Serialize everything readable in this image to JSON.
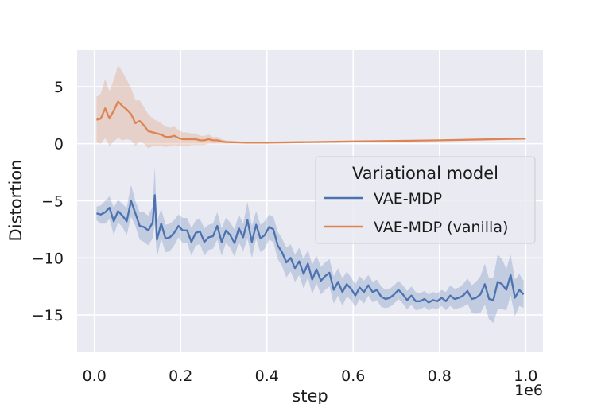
{
  "chart_data": {
    "type": "line",
    "title": "",
    "xlabel": "step",
    "ylabel": "Distortion",
    "x_offset_label": "1e6",
    "xlim": [
      -0.04,
      1.04
    ],
    "ylim": [
      -18.2,
      8.2
    ],
    "x_ticks": [
      0.0,
      0.2,
      0.4,
      0.6,
      0.8,
      1.0
    ],
    "x_tick_labels": [
      "0.0",
      "0.2",
      "0.4",
      "0.6",
      "0.8",
      "1.0"
    ],
    "y_ticks": [
      5,
      0,
      -5,
      -10,
      -15
    ],
    "y_tick_labels": [
      "5",
      "0",
      "−5",
      "−10",
      "−15"
    ],
    "grid": true,
    "background": "#eaeaf2",
    "legend": {
      "title": "Variational model",
      "placement": "center-right"
    },
    "series": [
      {
        "name": "VAE-MDP",
        "color": "#4c72b0",
        "x": [
          0.005,
          0.015,
          0.025,
          0.035,
          0.045,
          0.055,
          0.065,
          0.075,
          0.085,
          0.095,
          0.105,
          0.115,
          0.125,
          0.135,
          0.14,
          0.145,
          0.155,
          0.165,
          0.175,
          0.185,
          0.195,
          0.205,
          0.215,
          0.225,
          0.235,
          0.245,
          0.255,
          0.265,
          0.275,
          0.285,
          0.295,
          0.305,
          0.315,
          0.325,
          0.335,
          0.345,
          0.355,
          0.365,
          0.375,
          0.385,
          0.395,
          0.405,
          0.415,
          0.425,
          0.435,
          0.445,
          0.455,
          0.465,
          0.475,
          0.485,
          0.495,
          0.505,
          0.515,
          0.525,
          0.535,
          0.545,
          0.555,
          0.565,
          0.575,
          0.585,
          0.595,
          0.605,
          0.615,
          0.625,
          0.635,
          0.645,
          0.655,
          0.665,
          0.675,
          0.685,
          0.695,
          0.705,
          0.715,
          0.725,
          0.735,
          0.745,
          0.755,
          0.765,
          0.775,
          0.785,
          0.795,
          0.805,
          0.815,
          0.825,
          0.835,
          0.845,
          0.855,
          0.865,
          0.875,
          0.885,
          0.895,
          0.905,
          0.915,
          0.925,
          0.935,
          0.945,
          0.955,
          0.965,
          0.975,
          0.985,
          0.995
        ],
        "y": [
          -6.1,
          -6.2,
          -6.0,
          -5.6,
          -6.8,
          -5.9,
          -6.3,
          -6.8,
          -5.0,
          -6.1,
          -7.2,
          -7.3,
          -7.6,
          -6.9,
          -4.5,
          -8.4,
          -7.0,
          -8.3,
          -8.2,
          -7.8,
          -7.2,
          -7.6,
          -7.6,
          -8.6,
          -7.8,
          -7.7,
          -8.6,
          -8.2,
          -8.1,
          -7.2,
          -8.6,
          -7.6,
          -8.0,
          -8.7,
          -7.4,
          -8.2,
          -6.7,
          -8.6,
          -7.1,
          -8.3,
          -8.0,
          -7.3,
          -7.5,
          -8.9,
          -9.5,
          -10.4,
          -10.0,
          -10.9,
          -10.3,
          -11.4,
          -10.5,
          -11.9,
          -11.0,
          -12.0,
          -11.6,
          -11.3,
          -12.8,
          -12.1,
          -13.0,
          -12.3,
          -12.7,
          -13.3,
          -12.6,
          -13.0,
          -12.4,
          -13.0,
          -12.8,
          -13.4,
          -13.6,
          -13.5,
          -13.2,
          -12.8,
          -13.2,
          -13.7,
          -13.3,
          -13.8,
          -13.8,
          -13.6,
          -13.9,
          -13.7,
          -13.8,
          -13.5,
          -13.8,
          -13.3,
          -13.6,
          -13.5,
          -13.3,
          -12.9,
          -13.6,
          -13.5,
          -13.2,
          -12.3,
          -13.6,
          -13.7,
          -12.1,
          -12.3,
          -12.8,
          -11.5,
          -13.5,
          -12.8,
          -13.2
        ],
        "band_width": [
          0.6,
          0.8,
          1.0,
          1.0,
          1.2,
          1.0,
          1.0,
          1.2,
          1.4,
          1.1,
          1.2,
          1.3,
          1.3,
          1.4,
          2.5,
          1.6,
          1.3,
          1.2,
          1.2,
          1.1,
          1.0,
          1.1,
          1.1,
          1.2,
          1.1,
          1.1,
          1.2,
          1.1,
          1.1,
          1.2,
          1.2,
          1.1,
          1.1,
          1.2,
          1.2,
          1.2,
          1.6,
          1.4,
          1.2,
          1.2,
          1.2,
          1.1,
          1.1,
          1.2,
          1.2,
          1.3,
          1.2,
          1.2,
          1.2,
          1.3,
          1.2,
          1.3,
          1.2,
          1.2,
          1.2,
          1.2,
          1.2,
          1.2,
          1.2,
          1.1,
          1.0,
          1.0,
          1.0,
          1.0,
          0.9,
          0.9,
          0.9,
          0.9,
          0.8,
          0.8,
          0.8,
          0.8,
          0.8,
          0.8,
          0.8,
          0.8,
          0.7,
          0.7,
          0.7,
          0.7,
          0.7,
          0.7,
          0.8,
          0.9,
          0.9,
          0.9,
          1.0,
          1.1,
          1.2,
          1.4,
          1.6,
          1.8,
          1.8,
          2.0,
          2.4,
          2.2,
          1.8,
          1.8,
          1.6,
          1.4,
          1.2
        ]
      },
      {
        "name": "VAE-MDP (vanilla)",
        "color": "#dd8452",
        "x": [
          0.005,
          0.015,
          0.025,
          0.035,
          0.045,
          0.055,
          0.065,
          0.075,
          0.085,
          0.095,
          0.105,
          0.115,
          0.125,
          0.135,
          0.145,
          0.155,
          0.165,
          0.175,
          0.185,
          0.195,
          0.205,
          0.215,
          0.225,
          0.235,
          0.245,
          0.255,
          0.265,
          0.275,
          0.285,
          0.295,
          0.305,
          0.35,
          0.4,
          0.5,
          0.6,
          0.7,
          0.8,
          0.9,
          1.0
        ],
        "y": [
          2.1,
          2.2,
          3.1,
          2.2,
          2.9,
          3.7,
          3.3,
          3.0,
          2.6,
          1.8,
          2.0,
          1.6,
          1.1,
          1.0,
          0.9,
          0.8,
          0.6,
          0.6,
          0.7,
          0.5,
          0.4,
          0.4,
          0.4,
          0.4,
          0.3,
          0.3,
          0.4,
          0.3,
          0.3,
          0.2,
          0.15,
          0.1,
          0.1,
          0.15,
          0.2,
          0.25,
          0.3,
          0.38,
          0.45
        ],
        "band_width": [
          2.0,
          2.2,
          2.6,
          2.4,
          2.7,
          3.2,
          3.0,
          2.6,
          2.3,
          2.0,
          1.8,
          1.6,
          1.5,
          1.2,
          1.1,
          1.0,
          0.9,
          0.8,
          0.8,
          0.7,
          0.6,
          0.6,
          0.5,
          0.5,
          0.4,
          0.4,
          0.4,
          0.3,
          0.3,
          0.2,
          0.15,
          0.05,
          0.05,
          0.05,
          0.05,
          0.05,
          0.05,
          0.05,
          0.05
        ]
      }
    ]
  }
}
